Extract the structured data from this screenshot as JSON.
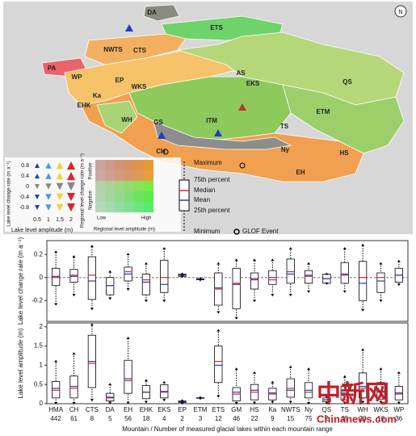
{
  "map": {
    "north_arrow": "N",
    "regions": [
      "DA",
      "ETS",
      "NWTS",
      "CTS",
      "PA",
      "WP",
      "EP",
      "AS",
      "EKS",
      "QS",
      "WKS",
      "EHK",
      "Ka",
      "WH",
      "ITM",
      "ETM",
      "GS",
      "TS",
      "CH",
      "Ny",
      "HS",
      "EH"
    ]
  },
  "legend": {
    "change_rate_label": "Lake level change rate (m a⁻¹)",
    "change_rate_ticks": [
      0.8,
      0.4,
      0,
      -0.4,
      -0.8
    ],
    "amplitude_label": "Lake level amplitude (m)",
    "amplitude_ticks": [
      0.5,
      1.0,
      1.5,
      2.0
    ],
    "regional_change_label": "Regional level change rate (m a⁻¹)",
    "positive": "Positive",
    "negative": "Negative",
    "low": "Low",
    "high": "High",
    "regional_amplitude_label": "Regional level amplitude (m)",
    "box_items": [
      "Maximum",
      "75th percent",
      "Median",
      "Mean",
      "25th percent",
      "Minimum"
    ],
    "glof": "GLOF Event"
  },
  "watermark": [
    "中新网",
    "Chinanews.com"
  ],
  "chart_data": [
    {
      "type": "box",
      "y_label": "Lake level change rate (m a⁻¹)",
      "ylim": [
        -0.38,
        0.32
      ],
      "yticks": [
        -0.2,
        0,
        0.2
      ],
      "median_color": "#d62728",
      "mean_color": "#1f3fbf",
      "min": [
        -0.23,
        -0.15,
        -0.27,
        -0.18,
        -0.1,
        -0.2,
        -0.2,
        0.01,
        -0.02,
        -0.3,
        -0.35,
        -0.2,
        -0.15,
        -0.15,
        -0.12,
        -0.05,
        -0.12,
        -0.28,
        -0.2,
        -0.06
      ],
      "q1": [
        -0.07,
        -0.04,
        -0.19,
        -0.15,
        -0.03,
        -0.15,
        -0.13,
        0.01,
        -0.02,
        -0.24,
        -0.27,
        -0.1,
        -0.06,
        -0.05,
        -0.05,
        -0.05,
        -0.05,
        -0.2,
        -0.13,
        -0.04
      ],
      "median": [
        0,
        0.02,
        0.02,
        -0.07,
        0.05,
        -0.02,
        0,
        0.02,
        -0.015,
        -0.1,
        -0.05,
        -0.02,
        -0.02,
        0.05,
        0.01,
        -0.01,
        0.02,
        0,
        0,
        0.02
      ],
      "mean": [
        0.01,
        0.01,
        -0.03,
        -0.07,
        0.03,
        -0.04,
        -0.06,
        0.02,
        -0.015,
        -0.09,
        -0.06,
        -0.01,
        0,
        0.03,
        0.02,
        -0.01,
        0.03,
        -0.05,
        -0.03,
        0.02
      ],
      "q3": [
        0.08,
        0.07,
        0.18,
        0,
        0.09,
        0.03,
        0.15,
        0.03,
        -0.01,
        0.04,
        0.08,
        0.04,
        0.06,
        0.16,
        0.06,
        0.03,
        0.13,
        0.14,
        0.04,
        0.08
      ],
      "max": [
        0.22,
        0.18,
        0.27,
        0.05,
        0.2,
        0.12,
        0.25,
        0.03,
        -0.01,
        0.12,
        0.15,
        0.15,
        0.15,
        0.25,
        0.12,
        0.03,
        0.25,
        0.28,
        0.12,
        0.14
      ]
    },
    {
      "type": "box",
      "y_label": "Lake level amplitude (m)",
      "ylim": [
        0,
        2.1
      ],
      "yticks": [
        0,
        0.5,
        1,
        1.5,
        2
      ],
      "median_color": "#d62728",
      "mean_color": "#1f3fbf",
      "categories": [
        "HMA",
        "CH",
        "CTS",
        "DA",
        "EH",
        "EHK",
        "EKS",
        "EP",
        "ETM",
        "ETS",
        "GM",
        "HS",
        "Ka",
        "NWTS",
        "Ny",
        "QS",
        "TS",
        "WH",
        "WKS",
        "WP"
      ],
      "counts": [
        442,
        61,
        8,
        5,
        56,
        18,
        4,
        2,
        3,
        12,
        46,
        22,
        9,
        15,
        75,
        2,
        35,
        20,
        16,
        36
      ],
      "x_label": "Mountain / Number of measured glacial lakes within each mountain range",
      "min": [
        0.02,
        0.02,
        0.1,
        0.03,
        0.03,
        0.05,
        0.1,
        0.02,
        0.14,
        0.2,
        0.02,
        0.03,
        0.05,
        0.05,
        0.02,
        0.03,
        0.03,
        0.05,
        0.05,
        0.03
      ],
      "q1": [
        0.15,
        0.15,
        0.42,
        0.07,
        0.27,
        0.13,
        0.15,
        0.03,
        0.14,
        0.55,
        0.07,
        0.1,
        0.1,
        0.17,
        0.15,
        0.05,
        0.1,
        0.15,
        0.12,
        0.1
      ],
      "median": [
        0.35,
        0.4,
        1.05,
        0.15,
        0.6,
        0.3,
        0.3,
        0.05,
        0.15,
        1.1,
        0.25,
        0.3,
        0.25,
        0.4,
        0.3,
        0.1,
        0.25,
        0.4,
        0.3,
        0.25
      ],
      "mean": [
        0.4,
        0.45,
        1.1,
        0.17,
        0.65,
        0.3,
        0.32,
        0.05,
        0.15,
        1.0,
        0.3,
        0.35,
        0.28,
        0.35,
        0.35,
        0.1,
        0.28,
        0.45,
        0.32,
        0.28
      ],
      "q3": [
        0.58,
        0.72,
        1.78,
        0.27,
        1.13,
        0.47,
        0.49,
        0.07,
        0.16,
        1.5,
        0.42,
        0.5,
        0.4,
        0.65,
        0.55,
        0.15,
        0.45,
        0.8,
        0.55,
        0.45
      ],
      "max": [
        1.1,
        1.3,
        2.05,
        0.5,
        1.7,
        0.6,
        0.55,
        0.08,
        0.16,
        1.9,
        0.9,
        0.8,
        0.55,
        0.95,
        0.9,
        0.2,
        0.7,
        1.4,
        0.9,
        0.8
      ]
    }
  ]
}
